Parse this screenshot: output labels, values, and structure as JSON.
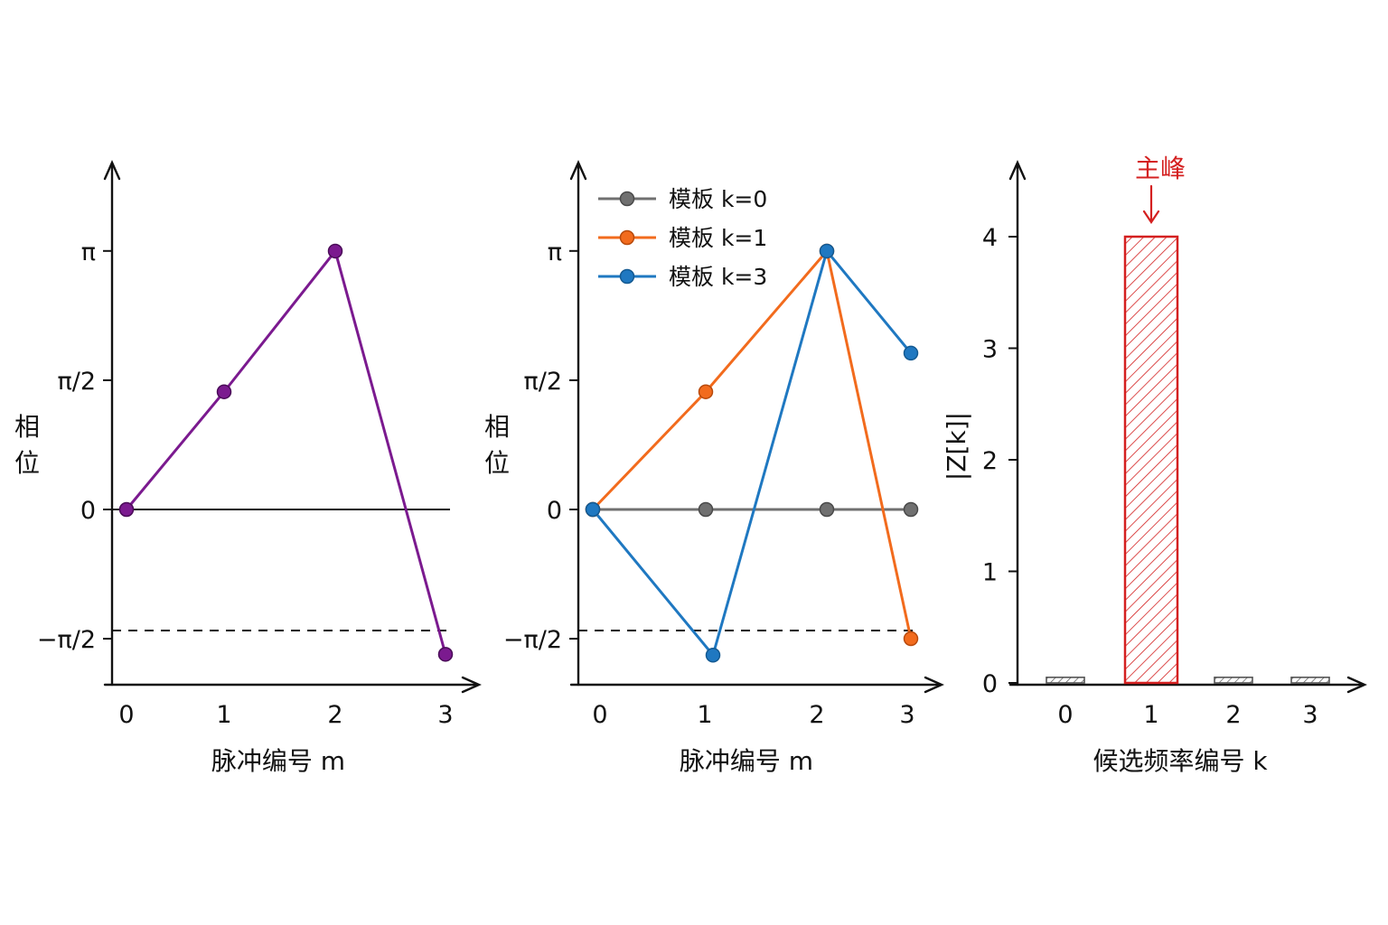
{
  "colors": {
    "measured": "#7b1a8f",
    "k0": "#707070",
    "k1": "#f26b1d",
    "k3": "#1f78c1",
    "peak": "#d42020",
    "small_bar": "#555555"
  },
  "chart_data": [
    {
      "type": "line",
      "x": [
        0,
        1,
        2,
        3
      ],
      "series": [
        {
          "values": [
            0,
            1.43,
            3.14,
            -1.76
          ]
        }
      ],
      "xlabel": "脉冲编号 m",
      "ylabel": "相位",
      "xticks": [
        "0",
        "1",
        "2",
        "3"
      ],
      "yticks": [
        "−π/2",
        "0",
        "π/2",
        "π"
      ],
      "ylim": [
        -2.1,
        4.2
      ],
      "reference_lines": [
        "0",
        "−π/2 (dashed)"
      ]
    },
    {
      "type": "line",
      "x": [
        0,
        1,
        2,
        3
      ],
      "series": [
        {
          "name": "模板 k=0",
          "values": [
            0,
            0,
            0,
            0
          ]
        },
        {
          "name": "模板 k=1",
          "values": [
            0,
            1.43,
            3.14,
            -1.57
          ]
        },
        {
          "name": "模板 k=3",
          "values": [
            0,
            -1.77,
            3.14,
            1.9
          ]
        }
      ],
      "xlabel": "脉冲编号 m",
      "ylabel": "相位",
      "xticks": [
        "0",
        "1",
        "2",
        "3"
      ],
      "yticks": [
        "−π/2",
        "0",
        "π/2",
        "π"
      ],
      "ylim": [
        -2.1,
        4.2
      ],
      "legend": "top-left"
    },
    {
      "type": "bar",
      "categories": [
        "0",
        "1",
        "2",
        "3"
      ],
      "values": [
        0.05,
        4.0,
        0.05,
        0.05
      ],
      "xlabel": "候选频率编号 k",
      "ylabel": "|Z[k]|",
      "yticks": [
        "0",
        "1",
        "2",
        "3",
        "4"
      ],
      "ylim": [
        0,
        4.6
      ],
      "annotation": "主峰"
    }
  ]
}
